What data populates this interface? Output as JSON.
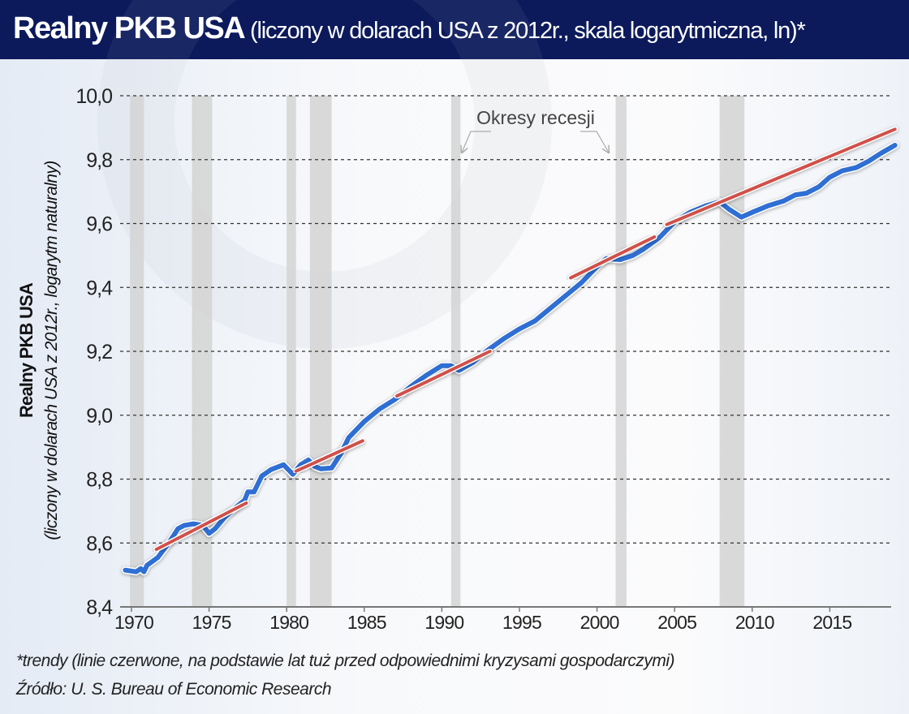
{
  "header": {
    "title_main": "Realny PKB USA",
    "title_sub": " (liczony w dolarach USA z 2012r., skala logarytmiczna, ln)*"
  },
  "footer": {
    "note": "*trendy (linie czerwone, na podstawie lat tuż przed odpowiednimi kryzysami gospodarczymi)",
    "source": "Źródło: U. S. Bureau of Economic Research"
  },
  "chart_data": {
    "type": "line",
    "title": "Realny PKB USA (liczony w dolarach USA z 2012r., skala logarytmiczna, ln)*",
    "ylabel": "Realny PKB USA",
    "ylabel_sub": "(liczony w dolarach USA z 2012r., logarytm naturalny)",
    "xlabel": "",
    "xlim": [
      1969.6,
      2019.4
    ],
    "ylim": [
      8.4,
      10.0
    ],
    "x_ticks": [
      "1970",
      "1975",
      "1980",
      "1985",
      "1990",
      "1995",
      "2000",
      "2005",
      "2010",
      "2015"
    ],
    "y_ticks": [
      "8,4",
      "8,6",
      "8,8",
      "9,0",
      "9,2",
      "9,4",
      "9,6",
      "9,8",
      "10,0"
    ],
    "grid": "horizontal dashed",
    "colors": {
      "gdp": "#2f6fd4",
      "trend": "#d0504a",
      "recession": "#d3d3d3"
    },
    "annotation": "Okresy recesji",
    "recessions": [
      [
        1969.9,
        1970.8
      ],
      [
        1973.9,
        1975.2
      ],
      [
        1980.0,
        1980.6
      ],
      [
        1981.5,
        1982.9
      ],
      [
        1990.6,
        1991.2
      ],
      [
        2001.2,
        2001.9
      ],
      [
        2007.9,
        2009.5
      ]
    ],
    "series": [
      {
        "role": "gdp",
        "points": [
          [
            1969.6,
            8.515
          ],
          [
            1970.3,
            8.51
          ],
          [
            1970.6,
            8.52
          ],
          [
            1970.8,
            8.51
          ],
          [
            1971.0,
            8.53
          ],
          [
            1971.7,
            8.555
          ],
          [
            1972.4,
            8.6
          ],
          [
            1973.0,
            8.645
          ],
          [
            1973.4,
            8.655
          ],
          [
            1974.0,
            8.66
          ],
          [
            1974.6,
            8.655
          ],
          [
            1975.0,
            8.63
          ],
          [
            1975.4,
            8.645
          ],
          [
            1976.0,
            8.68
          ],
          [
            1976.7,
            8.71
          ],
          [
            1977.3,
            8.735
          ],
          [
            1977.5,
            8.76
          ],
          [
            1977.9,
            8.76
          ],
          [
            1978.4,
            8.81
          ],
          [
            1979.0,
            8.83
          ],
          [
            1979.8,
            8.845
          ],
          [
            1980.4,
            8.815
          ],
          [
            1980.9,
            8.845
          ],
          [
            1981.4,
            8.86
          ],
          [
            1981.8,
            8.84
          ],
          [
            1982.2,
            8.832
          ],
          [
            1982.9,
            8.835
          ],
          [
            1983.5,
            8.88
          ],
          [
            1984.0,
            8.93
          ],
          [
            1985.0,
            8.98
          ],
          [
            1986.0,
            9.02
          ],
          [
            1987.0,
            9.05
          ],
          [
            1988.0,
            9.09
          ],
          [
            1989.0,
            9.125
          ],
          [
            1990.0,
            9.155
          ],
          [
            1990.6,
            9.155
          ],
          [
            1991.1,
            9.14
          ],
          [
            1992.0,
            9.165
          ],
          [
            1993.0,
            9.205
          ],
          [
            1994.0,
            9.24
          ],
          [
            1995.0,
            9.27
          ],
          [
            1996.0,
            9.295
          ],
          [
            1997.0,
            9.335
          ],
          [
            1998.0,
            9.375
          ],
          [
            1999.0,
            9.415
          ],
          [
            2000.0,
            9.465
          ],
          [
            2000.6,
            9.49
          ],
          [
            2001.5,
            9.487
          ],
          [
            2002.3,
            9.5
          ],
          [
            2003.0,
            9.52
          ],
          [
            2004.0,
            9.555
          ],
          [
            2005.0,
            9.605
          ],
          [
            2006.0,
            9.635
          ],
          [
            2007.0,
            9.655
          ],
          [
            2007.9,
            9.668
          ],
          [
            2008.5,
            9.645
          ],
          [
            2009.3,
            9.62
          ],
          [
            2010.0,
            9.635
          ],
          [
            2011.0,
            9.655
          ],
          [
            2012.0,
            9.67
          ],
          [
            2012.8,
            9.69
          ],
          [
            2013.5,
            9.695
          ],
          [
            2014.3,
            9.715
          ],
          [
            2015.0,
            9.745
          ],
          [
            2015.8,
            9.765
          ],
          [
            2016.7,
            9.775
          ],
          [
            2017.5,
            9.795
          ],
          [
            2018.3,
            9.82
          ],
          [
            2019.2,
            9.845
          ]
        ]
      },
      {
        "role": "trend",
        "points": [
          [
            1971.6,
            8.58
          ],
          [
            1977.4,
            8.725
          ]
        ]
      },
      {
        "role": "trend",
        "points": [
          [
            1980.6,
            8.825
          ],
          [
            1984.9,
            8.92
          ]
        ]
      },
      {
        "role": "trend",
        "points": [
          [
            1987.1,
            9.06
          ],
          [
            1993.1,
            9.2
          ]
        ]
      },
      {
        "role": "trend",
        "points": [
          [
            1998.3,
            9.43
          ],
          [
            2003.7,
            9.558
          ]
        ]
      },
      {
        "role": "trend",
        "points": [
          [
            2004.5,
            9.597
          ],
          [
            2019.2,
            9.895
          ]
        ]
      }
    ]
  }
}
